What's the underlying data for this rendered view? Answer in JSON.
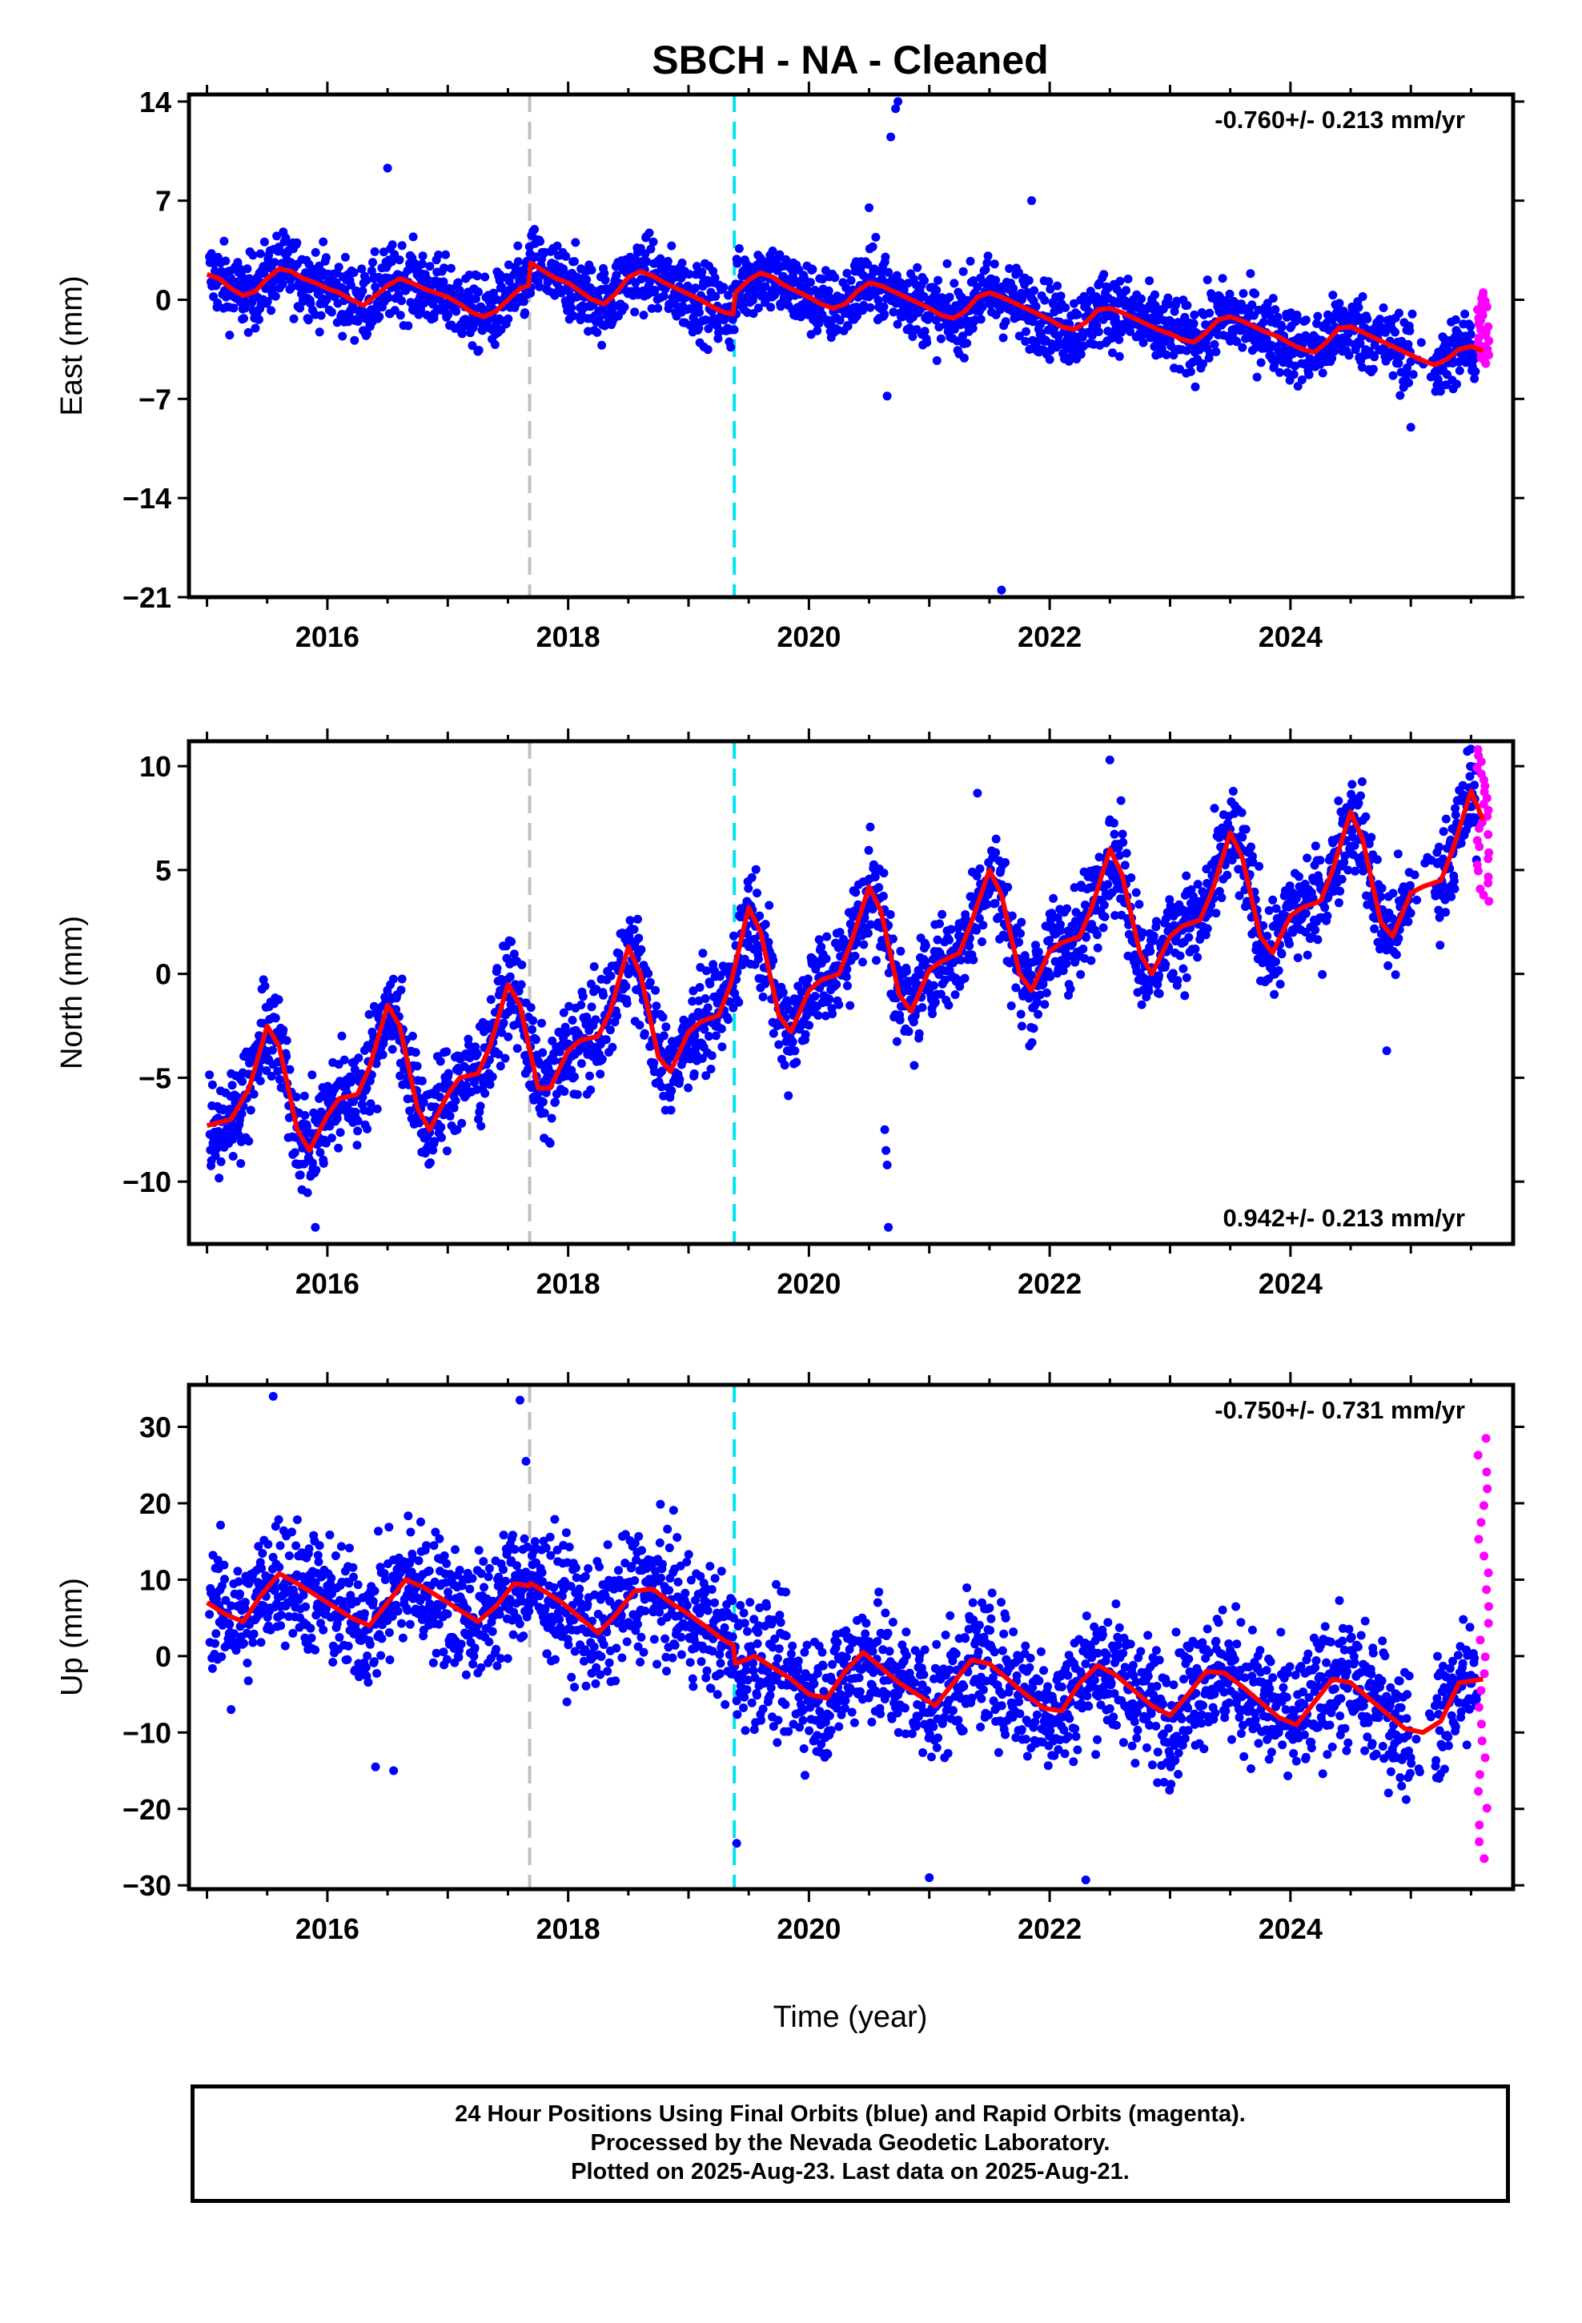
{
  "title": "SBCH  - NA - Cleaned",
  "xlabel": "Time (year)",
  "x_ticks": [
    "2016",
    "2018",
    "2020",
    "2022",
    "2024"
  ],
  "caption_lines": [
    "24 Hour Positions Using Final Orbits (blue) and Rapid Orbits (magenta).",
    "Processed by the Nevada Geodetic Laboratory.",
    "Plotted on 2025-Aug-23. Last data on 2025-Aug-21."
  ],
  "colors": {
    "final_orbits": "#0000ff",
    "rapid_orbits": "#ff00ff",
    "model": "#ff0000",
    "equipment_change": "#c0c0c0",
    "earthquake": "#00e5ee"
  },
  "chart_data": [
    {
      "type": "scatter",
      "component": "east",
      "ylabel": "East (mm)",
      "ylim": [
        -21,
        14.5
      ],
      "yticks": [
        14,
        7,
        0,
        -7,
        -14,
        -21
      ],
      "xlim": [
        2014.85,
        2025.85
      ],
      "rate_label": "-0.760+/- 0.213 mm/yr",
      "rate_label_position": "top-right",
      "vertical_lines": [
        {
          "x": 2017.68,
          "kind": "equipment_change"
        },
        {
          "x": 2019.38,
          "kind": "earthquake"
        }
      ],
      "model_line": {
        "x": [
          2015.0,
          2015.1,
          2015.2,
          2015.3,
          2015.4,
          2015.5,
          2015.6,
          2015.7,
          2015.8,
          2015.9,
          2016.0,
          2016.1,
          2016.2,
          2016.3,
          2016.4,
          2016.5,
          2016.6,
          2016.7,
          2016.8,
          2016.9,
          2017.0,
          2017.1,
          2017.2,
          2017.3,
          2017.4,
          2017.5,
          2017.6,
          2017.67,
          2017.69,
          2017.8,
          2017.9,
          2018.0,
          2018.1,
          2018.2,
          2018.3,
          2018.4,
          2018.5,
          2018.6,
          2018.7,
          2018.8,
          2018.9,
          2019.0,
          2019.1,
          2019.2,
          2019.3,
          2019.37,
          2019.39,
          2019.5,
          2019.6,
          2019.7,
          2019.8,
          2019.9,
          2020.0,
          2020.1,
          2020.2,
          2020.3,
          2020.4,
          2020.5,
          2020.6,
          2020.7,
          2020.8,
          2020.9,
          2021.0,
          2021.1,
          2021.2,
          2021.3,
          2021.4,
          2021.5,
          2021.6,
          2021.7,
          2021.8,
          2021.9,
          2022.0,
          2022.1,
          2022.2,
          2022.3,
          2022.4,
          2022.5,
          2022.6,
          2022.7,
          2022.8,
          2022.9,
          2023.0,
          2023.1,
          2023.2,
          2023.3,
          2023.4,
          2023.5,
          2023.6,
          2023.7,
          2023.8,
          2023.9,
          2024.0,
          2024.1,
          2024.2,
          2024.3,
          2024.4,
          2024.5,
          2024.6,
          2024.7,
          2024.8,
          2024.9,
          2025.0,
          2025.1,
          2025.2,
          2025.3,
          2025.4,
          2025.5,
          2025.6
        ],
        "y": [
          1.8,
          1.5,
          0.8,
          0.3,
          0.6,
          1.5,
          2.2,
          2.0,
          1.5,
          1.2,
          0.8,
          0.5,
          0.0,
          -0.4,
          0.3,
          1.0,
          1.5,
          1.2,
          0.8,
          0.5,
          0.2,
          -0.3,
          -0.9,
          -1.2,
          -0.8,
          0.0,
          0.8,
          1.0,
          2.6,
          2.0,
          1.5,
          1.2,
          0.6,
          0.0,
          -0.3,
          0.5,
          1.6,
          2.0,
          1.7,
          1.2,
          0.8,
          0.4,
          0.0,
          -0.5,
          -0.9,
          -1.0,
          0.5,
          1.4,
          1.9,
          1.6,
          1.0,
          0.6,
          0.2,
          -0.3,
          -0.6,
          -0.3,
          0.6,
          1.2,
          1.0,
          0.6,
          0.2,
          -0.2,
          -0.6,
          -1.1,
          -1.3,
          -0.8,
          0.2,
          0.5,
          0.2,
          -0.2,
          -0.6,
          -1.0,
          -1.4,
          -1.9,
          -2.1,
          -1.6,
          -0.7,
          -0.6,
          -0.9,
          -1.3,
          -1.7,
          -2.1,
          -2.4,
          -2.8,
          -3.0,
          -2.3,
          -1.4,
          -1.2,
          -1.5,
          -1.9,
          -2.3,
          -2.6,
          -3.1,
          -3.5,
          -3.7,
          -3.0,
          -2.0,
          -1.9,
          -2.3,
          -2.7,
          -3.1,
          -3.5,
          -3.9,
          -4.3,
          -4.6,
          -4.2,
          -3.5,
          -3.3,
          -3.6
        ]
      },
      "series": [
        {
          "label": "Final Orbits",
          "color": "#0000ff",
          "noise": 1.3,
          "outliers": [
            [
              2016.5,
              9.3
            ],
            [
              2020.72,
              13.5
            ],
            [
              2020.74,
              14.0
            ],
            [
              2020.68,
              11.5
            ],
            [
              2021.6,
              -20.5
            ],
            [
              2020.65,
              -6.8
            ],
            [
              2021.85,
              7.0
            ],
            [
              2020.5,
              6.5
            ],
            [
              2025.0,
              -9.0
            ]
          ]
        },
        {
          "label": "Rapid Orbits",
          "color": "#ff00ff",
          "x_range": [
            2025.55,
            2025.65
          ],
          "y_range": [
            -4.5,
            0.5
          ]
        }
      ]
    },
    {
      "type": "scatter",
      "component": "north",
      "ylabel": "North (mm)",
      "ylim": [
        -13,
        11.2
      ],
      "yticks": [
        10,
        5,
        0,
        -5,
        -10
      ],
      "xlim": [
        2014.85,
        2025.85
      ],
      "rate_label": "0.942+/- 0.213 mm/yr",
      "rate_label_position": "bottom-right",
      "vertical_lines": [
        {
          "x": 2017.68,
          "kind": "equipment_change"
        },
        {
          "x": 2019.38,
          "kind": "earthquake"
        }
      ],
      "model_line": {
        "x": [
          2015.0,
          2015.2,
          2015.35,
          2015.5,
          2015.6,
          2015.75,
          2015.85,
          2016.0,
          2016.1,
          2016.25,
          2016.35,
          2016.5,
          2016.6,
          2016.75,
          2016.85,
          2017.0,
          2017.1,
          2017.25,
          2017.35,
          2017.5,
          2017.6,
          2017.75,
          2017.85,
          2018.0,
          2018.1,
          2018.25,
          2018.35,
          2018.5,
          2018.6,
          2018.75,
          2018.85,
          2019.0,
          2019.1,
          2019.25,
          2019.35,
          2019.5,
          2019.6,
          2019.75,
          2019.85,
          2020.0,
          2020.1,
          2020.25,
          2020.35,
          2020.5,
          2020.6,
          2020.75,
          2020.85,
          2021.0,
          2021.1,
          2021.25,
          2021.35,
          2021.5,
          2021.6,
          2021.75,
          2021.85,
          2022.0,
          2022.1,
          2022.25,
          2022.35,
          2022.5,
          2022.6,
          2022.75,
          2022.85,
          2023.0,
          2023.1,
          2023.25,
          2023.35,
          2023.5,
          2023.6,
          2023.75,
          2023.85,
          2024.0,
          2024.1,
          2024.25,
          2024.35,
          2024.5,
          2024.6,
          2024.75,
          2024.85,
          2025.0,
          2025.1,
          2025.25,
          2025.35,
          2025.5,
          2025.6
        ],
        "y": [
          -7.3,
          -7.0,
          -5.5,
          -2.5,
          -3.5,
          -7.5,
          -8.5,
          -6.8,
          -6.0,
          -5.8,
          -4.5,
          -1.5,
          -2.5,
          -6.5,
          -7.5,
          -5.8,
          -5.0,
          -4.8,
          -3.5,
          -0.5,
          -1.5,
          -5.5,
          -5.5,
          -3.7,
          -3.2,
          -3.0,
          -1.8,
          1.3,
          0.0,
          -4.0,
          -4.7,
          -2.8,
          -2.3,
          -2.0,
          -0.5,
          3.2,
          2.0,
          -2.0,
          -2.8,
          -0.8,
          -0.3,
          0.0,
          1.5,
          4.2,
          3.0,
          -1.0,
          -1.8,
          0.2,
          0.6,
          1.0,
          2.5,
          5.0,
          3.8,
          0.0,
          -0.8,
          1.1,
          1.5,
          1.8,
          3.2,
          6.0,
          4.8,
          1.0,
          0.0,
          1.8,
          2.3,
          2.6,
          4.0,
          6.8,
          5.6,
          1.8,
          1.0,
          2.8,
          3.2,
          3.5,
          5.0,
          7.8,
          6.5,
          2.5,
          1.8,
          3.9,
          4.2,
          4.5,
          6.0,
          8.8,
          7.4
        ]
      },
      "series": [
        {
          "label": "Final Orbits",
          "color": "#0000ff",
          "noise": 1.2,
          "outliers": [
            [
              2020.63,
              -7.5
            ],
            [
              2020.64,
              -8.5
            ],
            [
              2020.65,
              -9.2
            ],
            [
              2020.66,
              -12.2
            ],
            [
              2024.8,
              -3.7
            ],
            [
              2022.5,
              10.3
            ],
            [
              2021.4,
              8.7
            ],
            [
              2015.9,
              -12.2
            ]
          ]
        },
        {
          "label": "Rapid Orbits",
          "color": "#ff00ff",
          "x_range": [
            2025.55,
            2025.65
          ],
          "y_range": [
            3.5,
            10.8
          ]
        }
      ]
    },
    {
      "type": "scatter",
      "component": "up",
      "ylabel": "Up (mm)",
      "ylim": [
        -30.5,
        35.5
      ],
      "yticks": [
        30,
        20,
        10,
        0,
        -10,
        -20,
        -30
      ],
      "xlim": [
        2014.85,
        2025.85
      ],
      "rate_label": "-0.750+/- 0.731 mm/yr",
      "rate_label_position": "top-right",
      "vertical_lines": [
        {
          "x": 2017.68,
          "kind": "equipment_change"
        },
        {
          "x": 2019.38,
          "kind": "earthquake"
        }
      ],
      "model_line": {
        "x": [
          2015.0,
          2015.15,
          2015.3,
          2015.45,
          2015.6,
          2015.75,
          2015.9,
          2016.05,
          2016.2,
          2016.35,
          2016.5,
          2016.65,
          2016.8,
          2016.95,
          2017.1,
          2017.25,
          2017.4,
          2017.55,
          2017.67,
          2017.69,
          2017.8,
          2017.95,
          2018.1,
          2018.25,
          2018.4,
          2018.55,
          2018.7,
          2018.85,
          2019.0,
          2019.15,
          2019.3,
          2019.37,
          2019.39,
          2019.55,
          2019.7,
          2019.85,
          2020.0,
          2020.15,
          2020.3,
          2020.45,
          2020.6,
          2020.75,
          2020.9,
          2021.05,
          2021.2,
          2021.35,
          2021.5,
          2021.65,
          2021.8,
          2021.95,
          2022.1,
          2022.25,
          2022.4,
          2022.55,
          2022.7,
          2022.85,
          2023.0,
          2023.15,
          2023.3,
          2023.45,
          2023.6,
          2023.75,
          2023.9,
          2024.05,
          2024.2,
          2024.35,
          2024.5,
          2024.65,
          2024.8,
          2024.95,
          2025.1,
          2025.25,
          2025.4,
          2025.6
        ],
        "y": [
          7.0,
          5.5,
          4.5,
          8.0,
          10.8,
          9.5,
          8.0,
          6.5,
          5.0,
          4.0,
          7.0,
          10.0,
          9.0,
          7.5,
          6.0,
          4.5,
          6.5,
          9.5,
          9.2,
          9.5,
          8.5,
          7.0,
          5.0,
          3.0,
          5.5,
          8.5,
          8.8,
          7.0,
          5.5,
          3.8,
          2.0,
          1.5,
          -1.0,
          0.0,
          -1.5,
          -3.0,
          -5.0,
          -5.5,
          -2.0,
          0.5,
          -1.5,
          -3.5,
          -5.0,
          -6.5,
          -3.5,
          -0.5,
          -1.0,
          -3.0,
          -5.0,
          -6.8,
          -7.2,
          -3.5,
          -1.2,
          -2.5,
          -4.5,
          -6.5,
          -7.8,
          -5.0,
          -2.0,
          -2.2,
          -4.0,
          -6.0,
          -8.0,
          -9.0,
          -6.0,
          -3.0,
          -3.5,
          -5.5,
          -7.5,
          -9.5,
          -10.0,
          -8.5,
          -3.5,
          -3.0
        ]
      },
      "series": [
        {
          "label": "Final Orbits",
          "color": "#0000ff",
          "noise": 4.2,
          "outliers": [
            [
              2015.55,
              34.0
            ],
            [
              2017.6,
              33.5
            ],
            [
              2017.65,
              25.5
            ],
            [
              2021.0,
              -29.0
            ],
            [
              2022.3,
              -29.3
            ],
            [
              2019.4,
              -24.5
            ],
            [
              2015.2,
              -7.0
            ],
            [
              2016.4,
              -14.5
            ],
            [
              2016.55,
              -15.0
            ]
          ]
        },
        {
          "label": "Rapid Orbits",
          "color": "#ff00ff",
          "x_range": [
            2025.55,
            2025.65
          ],
          "y_range": [
            -26.5,
            28.5
          ]
        }
      ]
    }
  ]
}
